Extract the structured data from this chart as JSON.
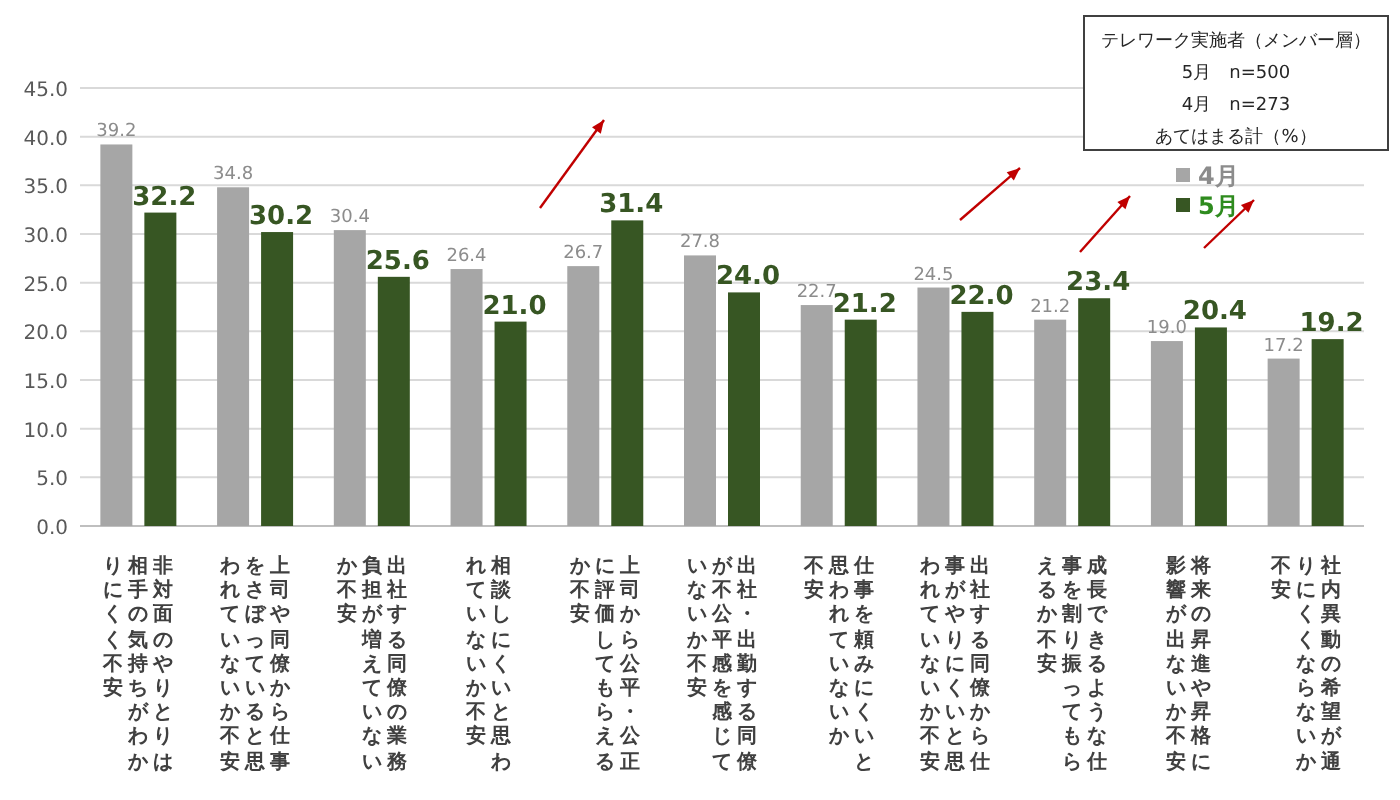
{
  "chart_data": {
    "type": "bar",
    "categories": [
      "非対面のやりとりは相手の気持ちがわかりにくく不安",
      "上司や同僚から仕事をさぼっていると思われていないか不安",
      "出社する同僚の業務負担が増えていないか不安",
      "相談しにくいと思われていないか不安",
      "上司から公平・公正に評価してもらえるか不安",
      "出社・出勤する同僚が不公平感を感じていないか不安",
      "仕事を頼みにくいと思われていないか不安",
      "出社する同僚から仕事がやりにくいと思われていないか不安",
      "成長できるような仕事を割り振ってもらえるか不安",
      "将来の昇進や昇格に影響が出ないか不安",
      "社内異動の希望が通りにくくならないか不安"
    ],
    "series": [
      {
        "name": "4月",
        "color": "#a6a6a6",
        "values": [
          39.2,
          34.8,
          30.4,
          26.4,
          26.7,
          27.8,
          22.7,
          24.5,
          21.2,
          19.0,
          17.2
        ],
        "value_labels": [
          "39.2",
          "34.8",
          "30.4",
          "26.4",
          "26.7",
          "27.8",
          "22.7",
          "24.5",
          "21.2",
          "19.0",
          "17.2"
        ]
      },
      {
        "name": "5月",
        "color": "#375623",
        "values": [
          32.2,
          30.2,
          25.6,
          21.0,
          31.4,
          24.0,
          21.2,
          22.0,
          23.4,
          20.4,
          19.2
        ],
        "value_labels": [
          "32.2",
          "30.2",
          "25.6",
          "21.0",
          "31.4",
          "24.0",
          "21.2",
          "22.0",
          "23.4",
          "20.4",
          "19.2"
        ]
      }
    ],
    "ylim": [
      0,
      45
    ],
    "yticks": [
      {
        "value": 0,
        "label": "0.0"
      },
      {
        "value": 5,
        "label": "5.0"
      },
      {
        "value": 10,
        "label": "10.0"
      },
      {
        "value": 15,
        "label": "15.0"
      },
      {
        "value": 20,
        "label": "20.0"
      },
      {
        "value": 25,
        "label": "25.0"
      },
      {
        "value": 30,
        "label": "30.0"
      },
      {
        "value": 35,
        "label": "35.0"
      },
      {
        "value": 40,
        "label": "40.0"
      },
      {
        "value": 45,
        "label": "45.0"
      }
    ],
    "grid": "y",
    "legend": "top right",
    "annotations": [
      "テレワーク実施者（メンバー層）",
      "5月　n=500",
      "4月　n=273",
      "あてはまる計（%）"
    ]
  }
}
